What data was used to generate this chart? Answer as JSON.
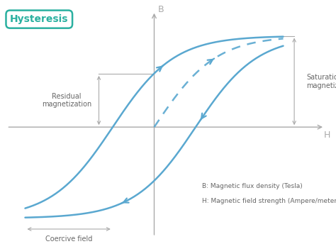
{
  "title": "Hysteresis",
  "bg_color": "#ffffff",
  "curve_color": "#5aa8d0",
  "annotation_color": "#aaaaaa",
  "title_box_color": "#2ab0a0",
  "title_text_color": "#2ab0a0",
  "axis_color": "#aaaaaa",
  "text_color": "#666666",
  "legend_texts": [
    "B: Magnetic flux density (Tesla)",
    "H: Magnetic field strength (Ampere/meter)"
  ],
  "residual_label": "Residual\nmagnetization",
  "saturation_label": "Saturation\nmagnetization",
  "coercive_label": "Coercive field",
  "B_label": "B",
  "H_label": "H",
  "xlim": [
    -1.6,
    1.9
  ],
  "ylim": [
    -1.45,
    1.55
  ]
}
